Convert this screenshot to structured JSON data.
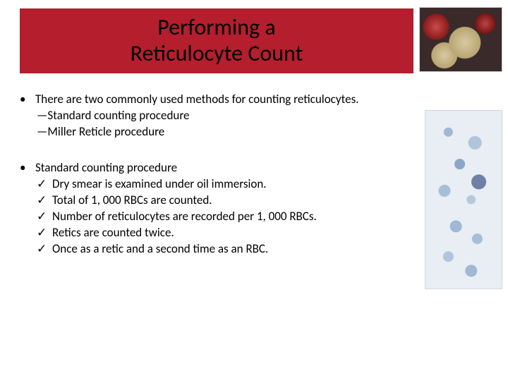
{
  "title": {
    "line1": "Performing a",
    "line2": "Reticulocyte Count",
    "banner_color": "#b41e2d",
    "text_color": "#000000",
    "fontsize": 32
  },
  "bullets": [
    {
      "lead": "There are two commonly used methods for counting reticulocytes.",
      "sublines": [
        "—Standard counting procedure",
        "—Miller Reticle procedure"
      ]
    },
    {
      "lead": "Standard counting procedure",
      "checklist": [
        " Dry smear is examined under oil immersion.",
        "Total of 1, 000 RBCs are counted.",
        "Number of reticulocytes are recorded per 1, 000 RBCs.",
        "Retics are counted twice.",
        "Once as a retic and a second time as an RBC."
      ]
    }
  ],
  "glyphs": {
    "bullet": "•",
    "check": "✓"
  },
  "images": {
    "corner": "blood-cells-illustration",
    "side": "reticulocyte-smear-micrograph"
  },
  "body_fontsize": 17,
  "background_color": "#ffffff"
}
